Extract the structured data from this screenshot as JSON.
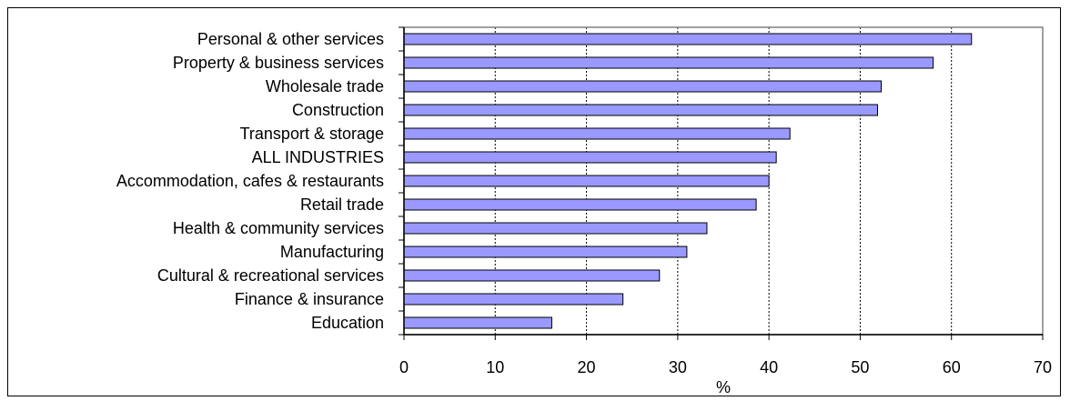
{
  "chart_data": {
    "type": "bar",
    "orientation": "horizontal",
    "categories": [
      "Personal & other services",
      "Property & business services",
      "Wholesale trade",
      "Construction",
      "Transport & storage",
      "ALL INDUSTRIES",
      "Accommodation, cafes & restaurants",
      "Retail trade",
      "Health & community services",
      "Manufacturing",
      "Cultural & recreational services",
      "Finance & insurance",
      "Education"
    ],
    "values": [
      62.2,
      58.0,
      52.3,
      51.9,
      42.3,
      40.8,
      40.0,
      38.6,
      33.2,
      31.0,
      28.0,
      24.0,
      16.2
    ],
    "xlabel": "%",
    "ylabel": "",
    "xlim": [
      0,
      70
    ],
    "xticks": [
      "0",
      "10",
      "20",
      "30",
      "40",
      "50",
      "60",
      "70"
    ],
    "grid": "vertical dotted",
    "legend": "none",
    "colors": {
      "bar_fill": "#9999ff",
      "bar_stroke": "#000000",
      "plot_border": "#808080",
      "grid": "#000000"
    }
  }
}
